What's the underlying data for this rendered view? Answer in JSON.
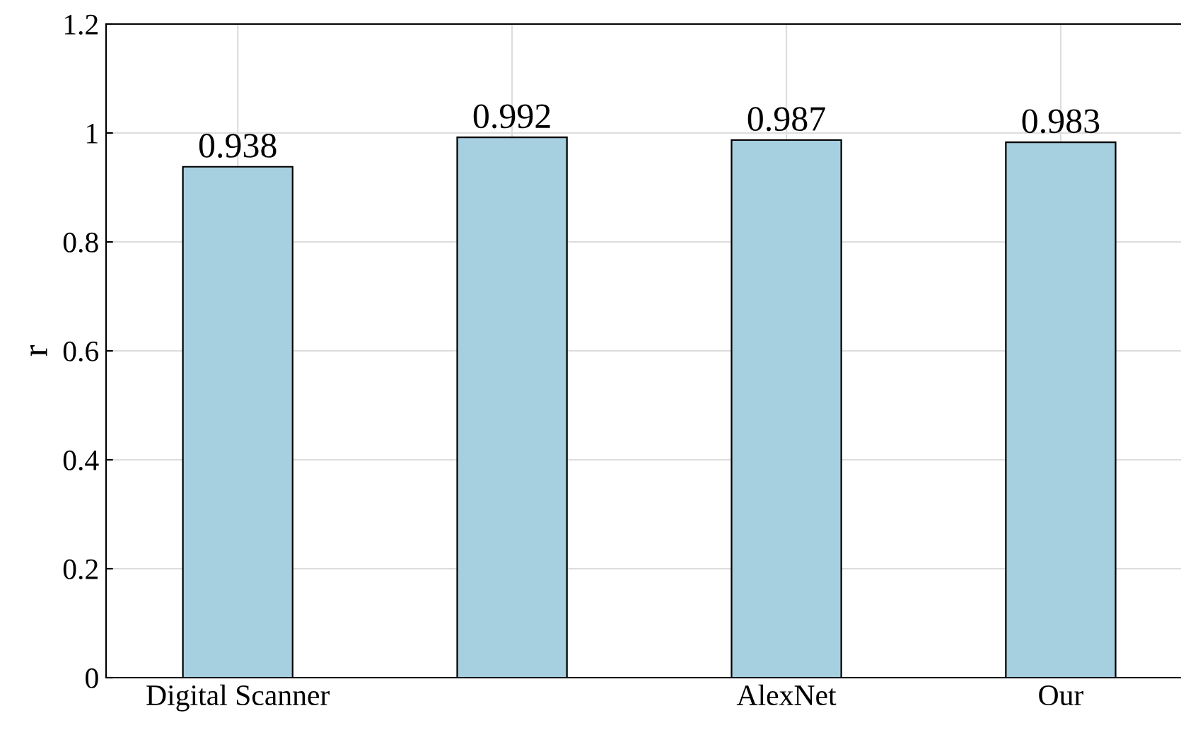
{
  "chart_data": {
    "type": "bar",
    "ylabel": "r",
    "categories": [
      "Digital Scanner",
      null,
      "AlexNet",
      "Our"
    ],
    "values": [
      0.938,
      0.992,
      0.987,
      0.983
    ],
    "color": "#a6cfe0",
    "ylim": [
      0,
      1.2
    ],
    "yticks": [
      0,
      0.2,
      0.4,
      0.6,
      0.8,
      1,
      1.2
    ],
    "grid": true,
    "data_labels": true
  }
}
